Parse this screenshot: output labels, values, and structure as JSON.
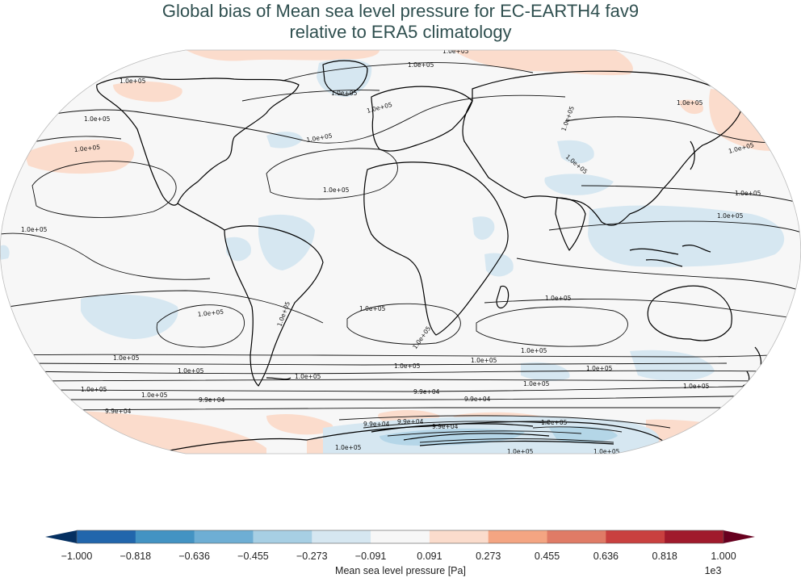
{
  "title": {
    "line1": "Global bias of Mean sea level pressure for EC-EARTH4 fav9",
    "line2": "relative to ERA5 climatology"
  },
  "map": {
    "projection": "Robinson",
    "ocean_color": "#f7f7f7",
    "land_outline_color": "#000000",
    "contour_labels": [
      "1.0e+05",
      "1.0e+05",
      "1.0e+05",
      "1.0e+05",
      "1.0e+05",
      "1.0e+05",
      "1.0e+05",
      "1.0e+05",
      "1.0e+05",
      "1.0e+05",
      "1.0e+05",
      "1.0e+05",
      "1.0e+05",
      "1.0e+05",
      "1.0e+05",
      "1.0e+05",
      "1.0e+05",
      "1.0e+05",
      "1.0e+05",
      "1.0e+05",
      "1.0e+05",
      "1.0e+05",
      "1.0e+05",
      "1.0e+05",
      "1.0e+05",
      "1.0e+05",
      "1.0e+05",
      "1.0e+05",
      "1.0e+05",
      "1.0e+05",
      "1.0e+05",
      "1.0e+05",
      "9.9e+04",
      "9.9e+04",
      "9.9e+04",
      "9.9e+04",
      "9.9e+04",
      "9.9e+04",
      "9.9e+04",
      "1.0e+05",
      "1.0e+05",
      "1.0e+05",
      "1.0e+05"
    ]
  },
  "colorbar": {
    "label": "Mean sea level pressure [Pa]",
    "multiplier": "1e3",
    "ticks": [
      "−1.000",
      "−0.818",
      "−0.636",
      "−0.455",
      "−0.273",
      "−0.091",
      "0.091",
      "0.273",
      "0.455",
      "0.636",
      "0.818",
      "1.000"
    ],
    "colors": [
      "#053061",
      "#2166ac",
      "#4393c3",
      "#92c5de",
      "#d1e5f0",
      "#f7f7f7",
      "#fddbc7",
      "#f4a582",
      "#d6604d",
      "#b2182b",
      "#67001f"
    ],
    "segment_colors": [
      "#2166ac",
      "#4393c3",
      "#6eaed4",
      "#a7cfe4",
      "#d6e7f1",
      "#f7f7f7",
      "#fbdccc",
      "#f4a582",
      "#e07b66",
      "#c9403f",
      "#a01a2c"
    ],
    "under_color": "#053061",
    "over_color": "#67001f"
  }
}
